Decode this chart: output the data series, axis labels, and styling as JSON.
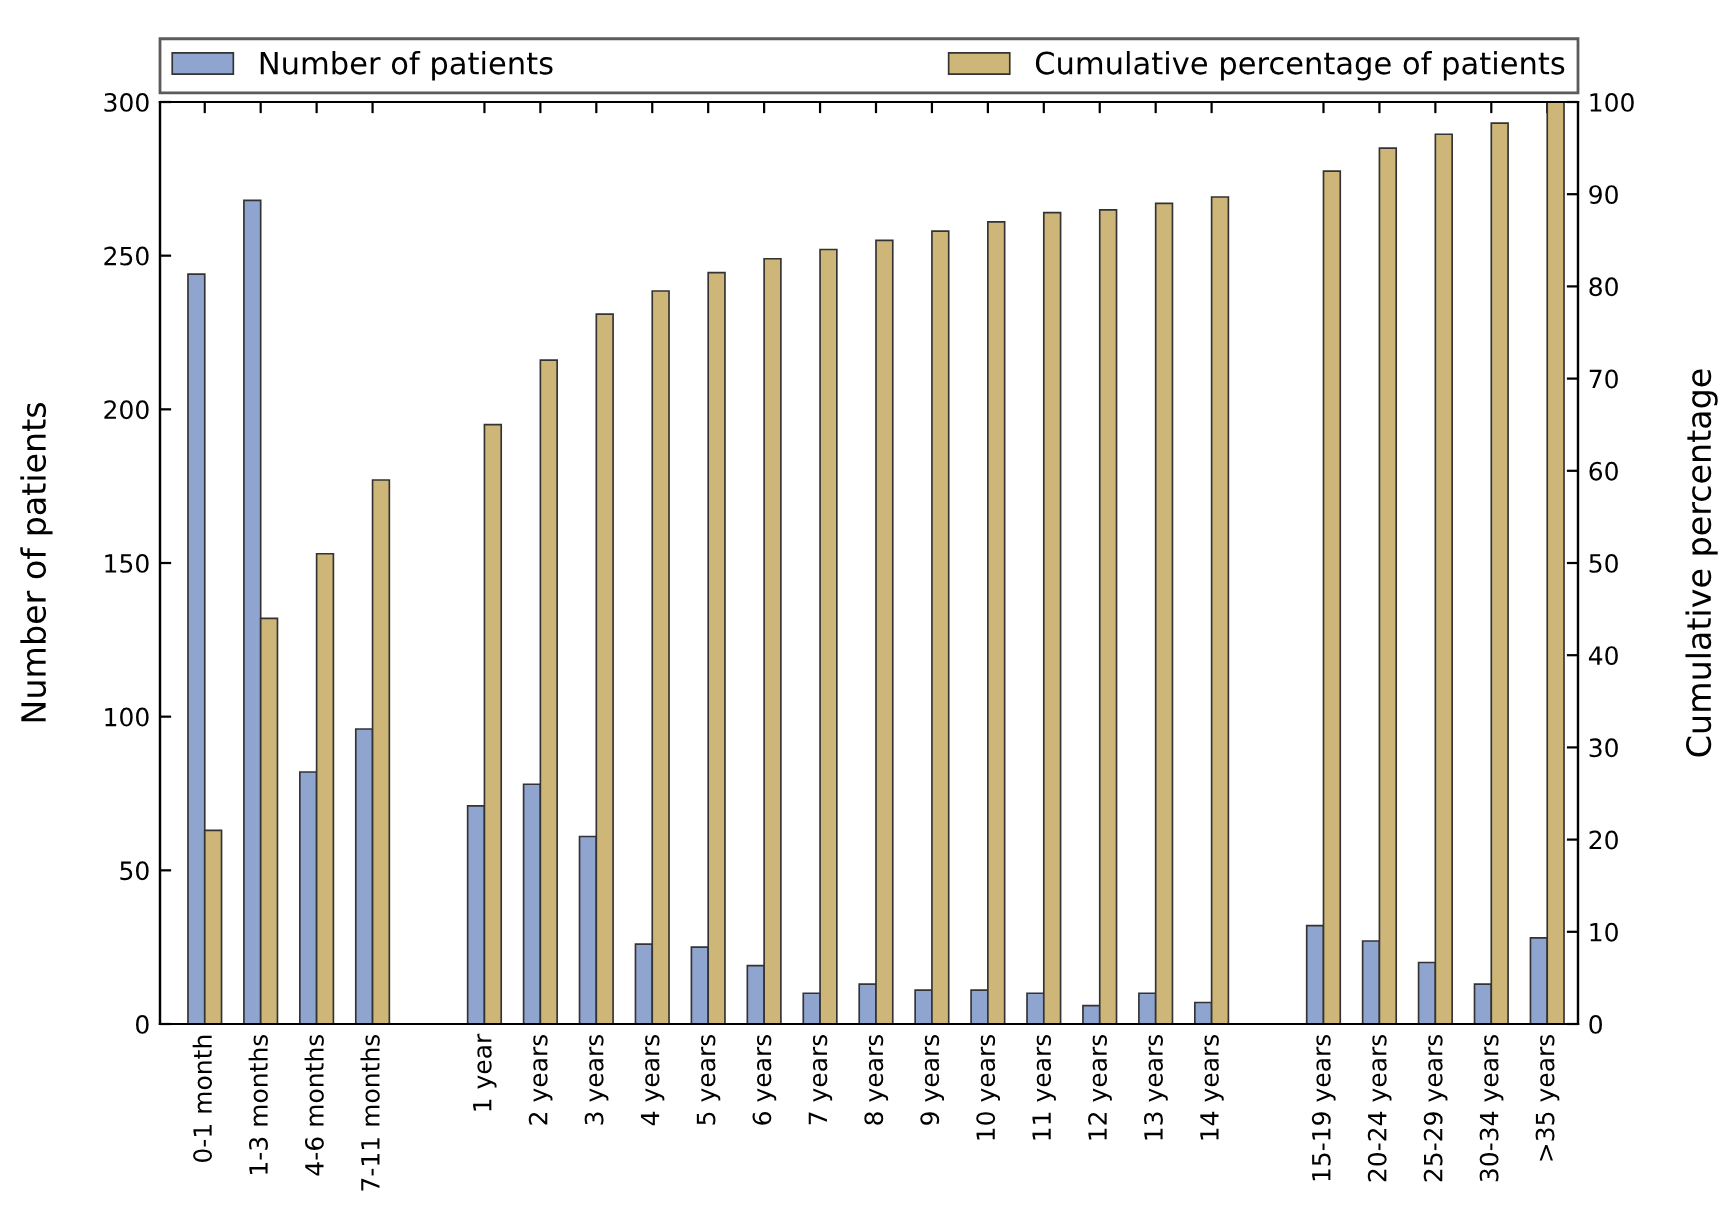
{
  "chart_data": {
    "type": "bar",
    "categories": [
      "0-1 month",
      "1-3 months",
      "4-6 months",
      "7-11 months",
      null,
      "1 year",
      "2 years",
      "3 years",
      "4 years",
      "5 years",
      "6 years",
      "7 years",
      "8 years",
      "9 years",
      "10 years",
      "11 years",
      "12 years",
      "13 years",
      "14 years",
      null,
      "15-19 years",
      "20-24 years",
      "25-29 years",
      "30-34 years",
      ">35 years"
    ],
    "series": [
      {
        "name": "Number of patients",
        "color": "#8fa5cf",
        "values": [
          244,
          268,
          82,
          96,
          null,
          71,
          78,
          61,
          26,
          25,
          19,
          10,
          13,
          11,
          11,
          10,
          6,
          10,
          7,
          null,
          32,
          27,
          20,
          13,
          28
        ]
      },
      {
        "name": "Cumulative percentage of patients",
        "color": "#cdb678",
        "axis": "y2",
        "values": [
          21,
          44,
          51,
          59,
          null,
          65,
          72,
          77,
          79.5,
          81.5,
          83,
          84,
          85,
          86,
          87,
          88,
          88.3,
          89,
          89.7,
          null,
          92.5,
          95,
          96.5,
          97.7,
          100
        ]
      }
    ],
    "ylabel": "Number of patients",
    "y2label": "Cumulative percentage",
    "ylim": [
      0,
      300
    ],
    "yticks": [
      0,
      50,
      100,
      150,
      200,
      250,
      300
    ],
    "y2lim": [
      0,
      100
    ],
    "y2ticks": [
      0,
      10,
      20,
      30,
      40,
      50,
      60,
      70,
      80,
      90,
      100
    ],
    "legend": "top",
    "grid": false
  }
}
